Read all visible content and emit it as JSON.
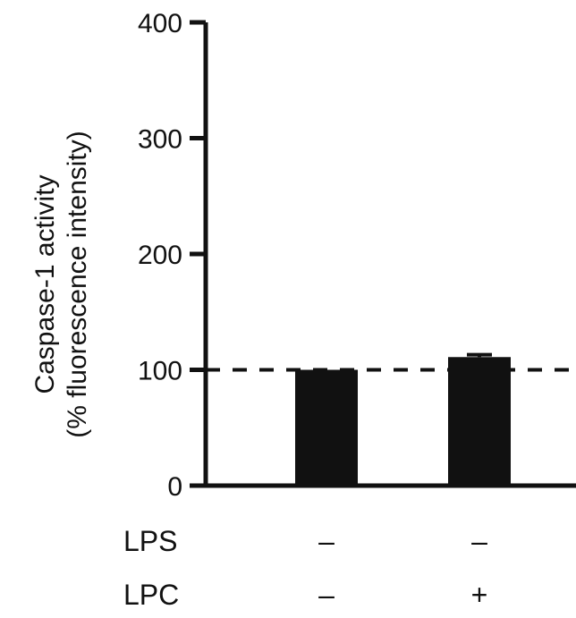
{
  "chart_data": {
    "type": "bar",
    "ylabel_lines": [
      "Caspase-1 activity",
      "(% fluorescence intensity)"
    ],
    "ylim": [
      0,
      400
    ],
    "yticks": [
      0,
      100,
      200,
      300,
      400
    ],
    "reference_line": 100,
    "categories": [
      "bar-1",
      "bar-2"
    ],
    "values": [
      100,
      111
    ],
    "errors": [
      0,
      2
    ],
    "colors": {
      "bar": "#111111",
      "axis": "#111111"
    },
    "conditions": [
      {
        "name": "LPS",
        "marks": [
          "–",
          "–"
        ]
      },
      {
        "name": "LPC",
        "marks": [
          "–",
          "+"
        ]
      }
    ]
  }
}
